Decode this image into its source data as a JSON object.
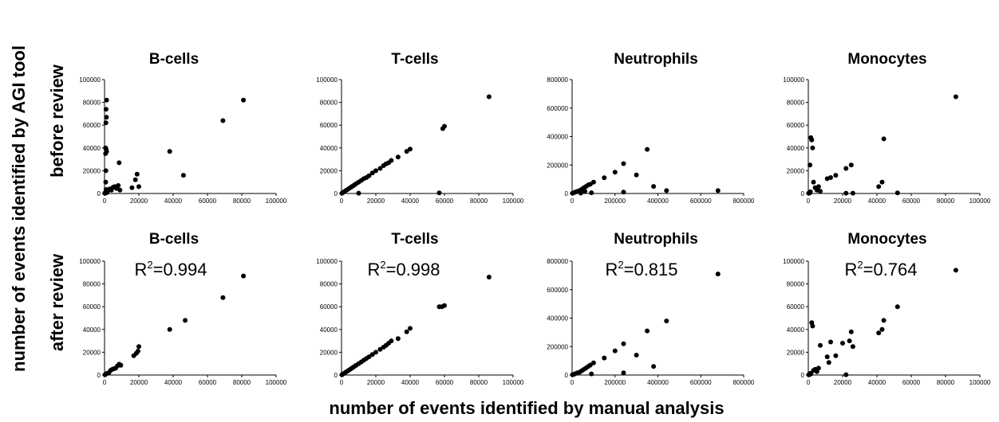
{
  "figure": {
    "y_title": "number of events identified by AGI tool",
    "x_title": "number of events identified by manual analysis",
    "row_labels": [
      "before review",
      "after review"
    ]
  },
  "chart_data": [
    {
      "type": "scatter",
      "row": 0,
      "col": 0,
      "title": "B-cells",
      "r2": "",
      "xlim": [
        0,
        100000
      ],
      "ylim": [
        0,
        100000
      ],
      "xticks": [
        "0",
        "20000",
        "40000",
        "60000",
        "80000",
        "100000"
      ],
      "yticks": [
        "0",
        "20000",
        "40000",
        "60000",
        "80000",
        "100000"
      ],
      "points": [
        [
          200,
          200
        ],
        [
          400,
          600
        ],
        [
          600,
          900
        ],
        [
          800,
          1200
        ],
        [
          1000,
          500
        ],
        [
          1200,
          2000
        ],
        [
          1500,
          1000
        ],
        [
          900,
          3500
        ],
        [
          1200,
          82000
        ],
        [
          900,
          74000
        ],
        [
          1100,
          67000
        ],
        [
          800,
          62000
        ],
        [
          600,
          40000
        ],
        [
          900,
          39000
        ],
        [
          1200,
          37000
        ],
        [
          600,
          35000
        ],
        [
          800,
          20000
        ],
        [
          700,
          10000
        ],
        [
          2000,
          2500
        ],
        [
          3000,
          4000
        ],
        [
          4000,
          3000
        ],
        [
          5000,
          5500
        ],
        [
          6000,
          6000
        ],
        [
          7000,
          4500
        ],
        [
          8000,
          7000
        ],
        [
          9000,
          3000
        ],
        [
          8500,
          27000
        ],
        [
          16000,
          5000
        ],
        [
          18000,
          12000
        ],
        [
          19000,
          17000
        ],
        [
          20000,
          6000
        ],
        [
          38000,
          37000
        ],
        [
          46000,
          16000
        ],
        [
          69000,
          64000
        ],
        [
          81000,
          82000
        ]
      ]
    },
    {
      "type": "scatter",
      "row": 0,
      "col": 1,
      "title": "T-cells",
      "r2": "",
      "xlim": [
        0,
        100000
      ],
      "ylim": [
        0,
        100000
      ],
      "xticks": [
        "0",
        "20000",
        "40000",
        "60000",
        "80000",
        "100000"
      ],
      "yticks": [
        "0",
        "20000",
        "40000",
        "60000",
        "80000",
        "100000"
      ],
      "points": [
        [
          300,
          300
        ],
        [
          800,
          800
        ],
        [
          1500,
          1500
        ],
        [
          2500,
          2500
        ],
        [
          3500,
          3500
        ],
        [
          4500,
          4500
        ],
        [
          5500,
          5500
        ],
        [
          6500,
          6500
        ],
        [
          7500,
          7500
        ],
        [
          8500,
          8500
        ],
        [
          10000,
          10000
        ],
        [
          11500,
          11500
        ],
        [
          13000,
          13000
        ],
        [
          14500,
          14000
        ],
        [
          16000,
          15500
        ],
        [
          18000,
          18000
        ],
        [
          20000,
          20000
        ],
        [
          22500,
          22000
        ],
        [
          24500,
          24500
        ],
        [
          26000,
          26000
        ],
        [
          27500,
          27000
        ],
        [
          29000,
          29000
        ],
        [
          33000,
          32000
        ],
        [
          38000,
          37000
        ],
        [
          40000,
          39000
        ],
        [
          59000,
          57000
        ],
        [
          60000,
          59000
        ],
        [
          86000,
          85000
        ],
        [
          57000,
          500
        ],
        [
          10000,
          300
        ]
      ]
    },
    {
      "type": "scatter",
      "row": 0,
      "col": 2,
      "title": "Neutrophils",
      "r2": "",
      "xlim": [
        0,
        800000
      ],
      "ylim": [
        0,
        800000
      ],
      "xticks": [
        "0",
        "200000",
        "400000",
        "600000",
        "800000"
      ],
      "yticks": [
        "0",
        "200000",
        "400000",
        "600000",
        "800000"
      ],
      "points": [
        [
          2000,
          2000
        ],
        [
          8000,
          5000
        ],
        [
          15000,
          10000
        ],
        [
          25000,
          15000
        ],
        [
          35000,
          20000
        ],
        [
          45000,
          30000
        ],
        [
          55000,
          40000
        ],
        [
          65000,
          50000
        ],
        [
          75000,
          60000
        ],
        [
          85000,
          65000
        ],
        [
          100000,
          80000
        ],
        [
          150000,
          110000
        ],
        [
          200000,
          150000
        ],
        [
          240000,
          210000
        ],
        [
          300000,
          130000
        ],
        [
          350000,
          310000
        ],
        [
          380000,
          50000
        ],
        [
          440000,
          20000
        ],
        [
          680000,
          20000
        ],
        [
          240000,
          10000
        ],
        [
          90000,
          5000
        ],
        [
          40000,
          3000
        ],
        [
          60000,
          15000
        ]
      ]
    },
    {
      "type": "scatter",
      "row": 0,
      "col": 3,
      "title": "Monocytes",
      "r2": "",
      "xlim": [
        0,
        100000
      ],
      "ylim": [
        0,
        100000
      ],
      "xticks": [
        "0",
        "20000",
        "40000",
        "60000",
        "80000",
        "100000"
      ],
      "yticks": [
        "0",
        "20000",
        "40000",
        "60000",
        "80000",
        "100000"
      ],
      "points": [
        [
          300,
          300
        ],
        [
          600,
          800
        ],
        [
          900,
          500
        ],
        [
          1200,
          1500
        ],
        [
          1500,
          49000
        ],
        [
          2000,
          47000
        ],
        [
          2500,
          40000
        ],
        [
          1000,
          25000
        ],
        [
          3000,
          10000
        ],
        [
          4000,
          5000
        ],
        [
          5000,
          3000
        ],
        [
          6000,
          6000
        ],
        [
          7000,
          2000
        ],
        [
          11000,
          13000
        ],
        [
          13000,
          14000
        ],
        [
          16000,
          16000
        ],
        [
          22000,
          22000
        ],
        [
          25000,
          25000
        ],
        [
          22000,
          300
        ],
        [
          26000,
          300
        ],
        [
          41000,
          6000
        ],
        [
          43000,
          10000
        ],
        [
          44000,
          48000
        ],
        [
          52000,
          500
        ],
        [
          86000,
          85000
        ]
      ]
    },
    {
      "type": "scatter",
      "row": 1,
      "col": 0,
      "title": "B-cells",
      "r2": "0.994",
      "xlim": [
        0,
        100000
      ],
      "ylim": [
        0,
        100000
      ],
      "xticks": [
        "0",
        "20000",
        "40000",
        "60000",
        "80000",
        "100000"
      ],
      "yticks": [
        "0",
        "20000",
        "40000",
        "60000",
        "80000",
        "100000"
      ],
      "points": [
        [
          300,
          300
        ],
        [
          800,
          800
        ],
        [
          1500,
          1500
        ],
        [
          2500,
          2000
        ],
        [
          3500,
          4000
        ],
        [
          4500,
          5000
        ],
        [
          5500,
          5500
        ],
        [
          6500,
          6000
        ],
        [
          7500,
          8000
        ],
        [
          8500,
          9500
        ],
        [
          9500,
          8500
        ],
        [
          17000,
          17000
        ],
        [
          18500,
          19000
        ],
        [
          19500,
          21000
        ],
        [
          20000,
          25000
        ],
        [
          38000,
          40000
        ],
        [
          47000,
          48000
        ],
        [
          69000,
          68000
        ],
        [
          81000,
          87000
        ]
      ]
    },
    {
      "type": "scatter",
      "row": 1,
      "col": 1,
      "title": "T-cells",
      "r2": "0.998",
      "xlim": [
        0,
        100000
      ],
      "ylim": [
        0,
        100000
      ],
      "xticks": [
        "0",
        "20000",
        "40000",
        "60000",
        "80000",
        "100000"
      ],
      "yticks": [
        "0",
        "20000",
        "40000",
        "60000",
        "80000",
        "100000"
      ],
      "points": [
        [
          300,
          300
        ],
        [
          800,
          800
        ],
        [
          1500,
          1500
        ],
        [
          2500,
          2500
        ],
        [
          3500,
          3500
        ],
        [
          4500,
          4500
        ],
        [
          5500,
          5500
        ],
        [
          6500,
          6500
        ],
        [
          7500,
          7500
        ],
        [
          8500,
          8500
        ],
        [
          10000,
          10000
        ],
        [
          11500,
          11500
        ],
        [
          13000,
          13000
        ],
        [
          14500,
          14500
        ],
        [
          16000,
          16000
        ],
        [
          18000,
          18000
        ],
        [
          20000,
          20000
        ],
        [
          22500,
          22500
        ],
        [
          24500,
          24500
        ],
        [
          26000,
          26000
        ],
        [
          27500,
          28000
        ],
        [
          29000,
          30000
        ],
        [
          33000,
          32000
        ],
        [
          38000,
          38000
        ],
        [
          40000,
          41000
        ],
        [
          57000,
          60000
        ],
        [
          58500,
          60000
        ],
        [
          60000,
          61000
        ],
        [
          86000,
          86000
        ]
      ]
    },
    {
      "type": "scatter",
      "row": 1,
      "col": 2,
      "title": "Neutrophils",
      "r2": "0.815",
      "xlim": [
        0,
        800000
      ],
      "ylim": [
        0,
        800000
      ],
      "xticks": [
        "0",
        "200000",
        "400000",
        "600000",
        "800000"
      ],
      "yticks": [
        "0",
        "200000",
        "400000",
        "600000",
        "800000"
      ],
      "points": [
        [
          2000,
          2000
        ],
        [
          8000,
          5000
        ],
        [
          15000,
          10000
        ],
        [
          25000,
          15000
        ],
        [
          35000,
          20000
        ],
        [
          45000,
          30000
        ],
        [
          55000,
          40000
        ],
        [
          65000,
          50000
        ],
        [
          75000,
          60000
        ],
        [
          85000,
          70000
        ],
        [
          100000,
          85000
        ],
        [
          150000,
          120000
        ],
        [
          200000,
          170000
        ],
        [
          240000,
          220000
        ],
        [
          300000,
          140000
        ],
        [
          350000,
          310000
        ],
        [
          380000,
          60000
        ],
        [
          440000,
          380000
        ],
        [
          680000,
          710000
        ],
        [
          240000,
          15000
        ],
        [
          90000,
          8000
        ]
      ]
    },
    {
      "type": "scatter",
      "row": 1,
      "col": 3,
      "title": "Monocytes",
      "r2": "0.764",
      "xlim": [
        0,
        100000
      ],
      "ylim": [
        0,
        100000
      ],
      "xticks": [
        "0",
        "20000",
        "40000",
        "60000",
        "80000",
        "100000"
      ],
      "yticks": [
        "0",
        "20000",
        "40000",
        "60000",
        "80000",
        "100000"
      ],
      "points": [
        [
          300,
          300
        ],
        [
          600,
          800
        ],
        [
          900,
          500
        ],
        [
          1200,
          1500
        ],
        [
          1500,
          1000
        ],
        [
          2000,
          46000
        ],
        [
          2500,
          43000
        ],
        [
          3000,
          4000
        ],
        [
          4000,
          5000
        ],
        [
          5000,
          3000
        ],
        [
          6000,
          6000
        ],
        [
          7000,
          26000
        ],
        [
          11000,
          16000
        ],
        [
          12000,
          11000
        ],
        [
          13000,
          29000
        ],
        [
          16000,
          17000
        ],
        [
          20000,
          28000
        ],
        [
          22000,
          300
        ],
        [
          24000,
          30000
        ],
        [
          25000,
          38000
        ],
        [
          26000,
          25000
        ],
        [
          41000,
          37000
        ],
        [
          43000,
          40000
        ],
        [
          44000,
          48000
        ],
        [
          52000,
          60000
        ],
        [
          86000,
          92000
        ]
      ]
    }
  ]
}
